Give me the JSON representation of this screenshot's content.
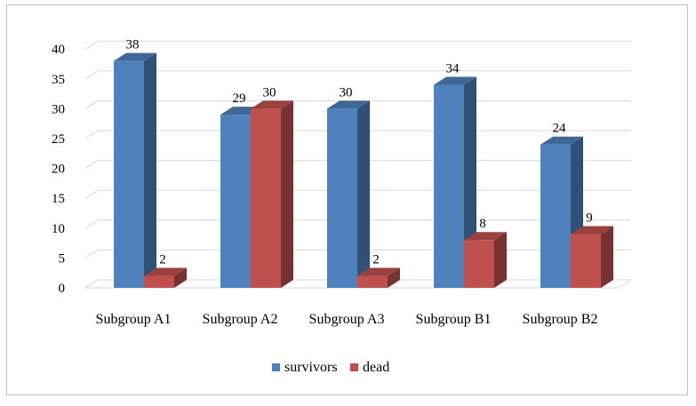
{
  "chart_data": {
    "type": "bar",
    "categories": [
      "Subgroup A1",
      "Subgroup A2",
      "Subgroup A3",
      "Subgroup B1",
      "Subgroup B2"
    ],
    "series": [
      {
        "name": "survivors",
        "values": [
          38,
          29,
          30,
          34,
          24
        ],
        "color": "#4f81bd"
      },
      {
        "name": "dead",
        "values": [
          2,
          30,
          2,
          8,
          9
        ],
        "color": "#c0504d"
      }
    ],
    "ylim": [
      0,
      40
    ],
    "yticks": [
      0,
      5,
      10,
      15,
      20,
      25,
      30,
      35,
      40
    ],
    "grid": true,
    "three_d": true,
    "legend_position": "bottom"
  }
}
